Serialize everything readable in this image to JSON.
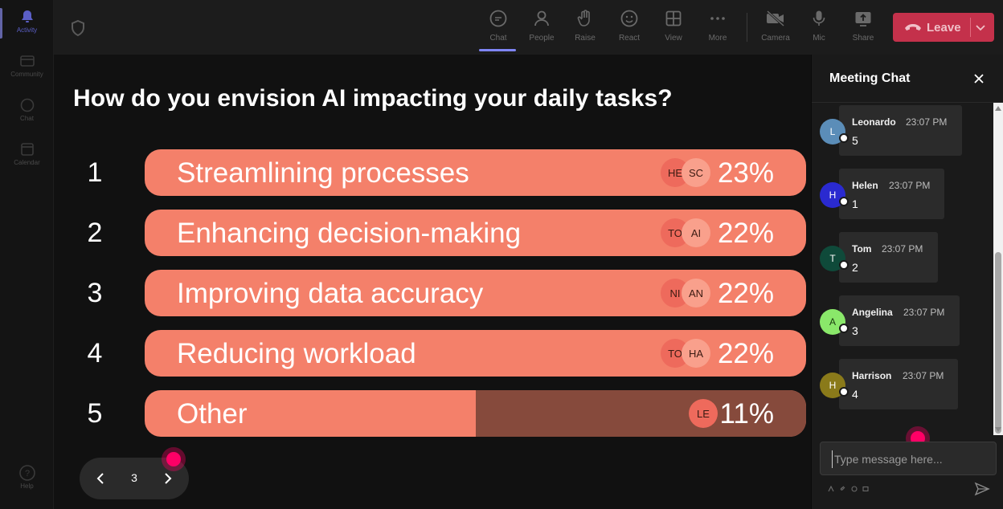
{
  "rail": {
    "items": [
      {
        "label": "Activity",
        "icon": "bell-icon"
      },
      {
        "label": "Community",
        "icon": "community-icon"
      },
      {
        "label": "Chat",
        "icon": "chat-icon"
      },
      {
        "label": "Calendar",
        "icon": "calendar-icon"
      }
    ],
    "help_label": "Help"
  },
  "toolbar": {
    "chat": "Chat",
    "people": "People",
    "raise": "Raise",
    "react": "React",
    "view": "View",
    "more": "More",
    "camera": "Camera",
    "mic": "Mic",
    "share": "Share",
    "leave": "Leave"
  },
  "poll": {
    "question": "How do you envision AI impacting your daily tasks?",
    "options": [
      {
        "num": "1",
        "label": "Streamlining processes",
        "percent": "23%",
        "fill": 1.0,
        "avatars": [
          "HE",
          "SC"
        ]
      },
      {
        "num": "2",
        "label": "Enhancing decision-making",
        "percent": "22%",
        "fill": 1.0,
        "avatars": [
          "TO",
          "AI"
        ]
      },
      {
        "num": "3",
        "label": "Improving data accuracy",
        "percent": "22%",
        "fill": 1.0,
        "avatars": [
          "NI",
          "AN"
        ]
      },
      {
        "num": "4",
        "label": "Reducing workload",
        "percent": "22%",
        "fill": 1.0,
        "avatars": [
          "TO",
          "HA"
        ]
      },
      {
        "num": "5",
        "label": "Other",
        "percent": "11%",
        "fill": 0.5,
        "avatars": [
          "LE"
        ]
      }
    ]
  },
  "pager": {
    "page": "3"
  },
  "chat": {
    "title": "Meeting Chat",
    "messages": [
      {
        "initial": "L",
        "name": "Leonardo",
        "time": "23:07 PM",
        "text": "5",
        "color": "#5b8db8"
      },
      {
        "initial": "H",
        "name": "Helen",
        "time": "23:07 PM",
        "text": "1",
        "color": "#2a2ad0"
      },
      {
        "initial": "T",
        "name": "Tom",
        "time": "23:07 PM",
        "text": "2",
        "color": "#0f4a3a"
      },
      {
        "initial": "A",
        "name": "Angelina",
        "time": "23:07 PM",
        "text": "3",
        "color": "#8ae86a"
      },
      {
        "initial": "H",
        "name": "Harrison",
        "time": "23:07 PM",
        "text": "4",
        "color": "#8a7a1a"
      }
    ],
    "composer_placeholder": "Type message here..."
  },
  "colors": {
    "bar": "#f4806a",
    "bar_unfilled": "#864a3c",
    "leave": "#c4314b",
    "accent": "#7f85f5"
  }
}
